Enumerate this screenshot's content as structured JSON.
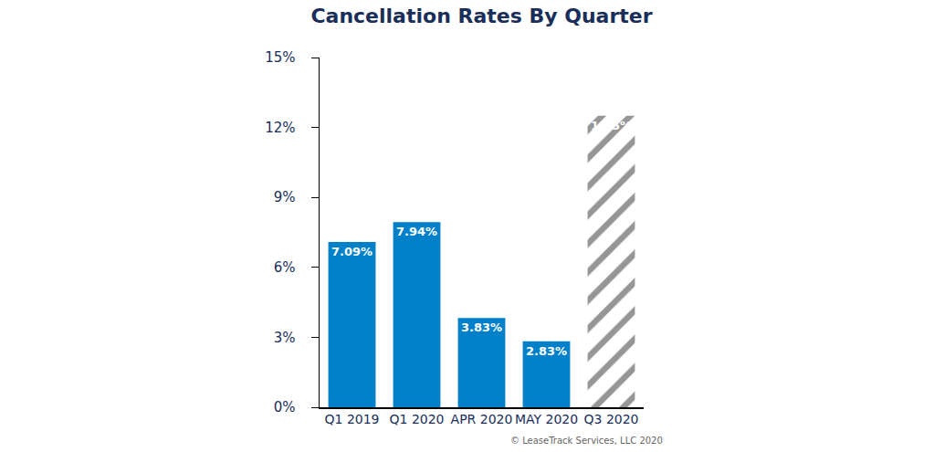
{
  "chart_data": {
    "type": "bar",
    "title": "Cancellation Rates By Quarter",
    "categories": [
      "Q1 2019",
      "Q1 2020",
      "APR 2020",
      "MAY 2020",
      "Q3 2020"
    ],
    "values": [
      7.09,
      7.94,
      3.83,
      2.83,
      12.5
    ],
    "value_labels": [
      "7.09%",
      "7.94%",
      "3.83%",
      "2.83%",
      "12.5%"
    ],
    "colors": [
      "#0080c8",
      "#0080c8",
      "#0080c8",
      "#0080c8",
      "#969696"
    ],
    "data_labels": true,
    "ylim": [
      0,
      15
    ],
    "yticks": [
      {
        "value": 0,
        "label": "0%"
      },
      {
        "value": 3,
        "label": "3%"
      },
      {
        "value": 6,
        "label": "6%"
      },
      {
        "value": 9,
        "label": "9%"
      },
      {
        "value": 12,
        "label": "12%"
      },
      {
        "value": 15,
        "label": "15%"
      }
    ],
    "grid": false,
    "annotations": [
      "© LeaseTrack Services, LLC 2020"
    ]
  }
}
